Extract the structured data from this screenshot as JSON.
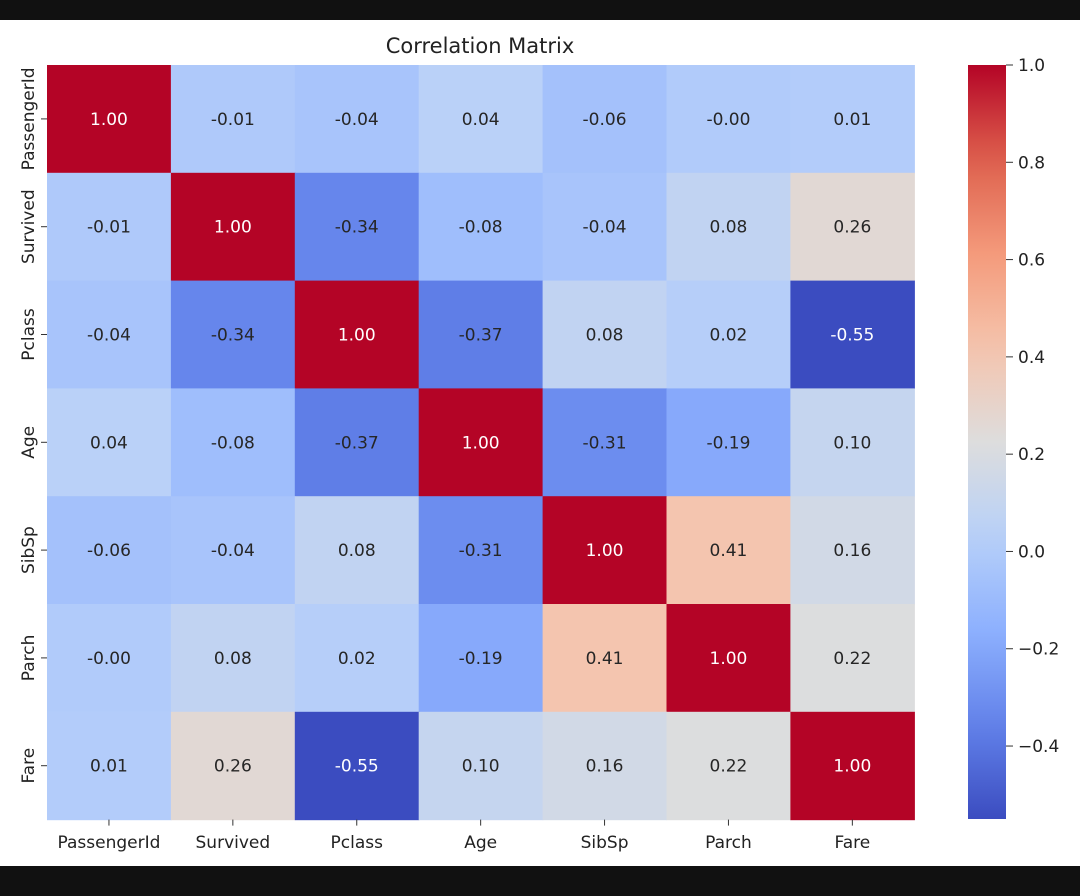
{
  "chart_data": {
    "type": "heatmap",
    "title": "Correlation Matrix",
    "xlabel": "",
    "ylabel": "",
    "row_labels": [
      "PassengerId",
      "Survived",
      "Pclass",
      "Age",
      "SibSp",
      "Parch",
      "Fare"
    ],
    "col_labels": [
      "PassengerId",
      "Survived",
      "Pclass",
      "Age",
      "SibSp",
      "Parch",
      "Fare"
    ],
    "values": [
      [
        1.0,
        -0.01,
        -0.04,
        0.04,
        -0.06,
        -0.0,
        0.01
      ],
      [
        -0.01,
        1.0,
        -0.34,
        -0.08,
        -0.04,
        0.08,
        0.26
      ],
      [
        -0.04,
        -0.34,
        1.0,
        -0.37,
        0.08,
        0.02,
        -0.55
      ],
      [
        0.04,
        -0.08,
        -0.37,
        1.0,
        -0.31,
        -0.19,
        0.1
      ],
      [
        -0.06,
        -0.04,
        0.08,
        -0.31,
        1.0,
        0.41,
        0.16
      ],
      [
        -0.0,
        0.08,
        0.02,
        -0.19,
        0.41,
        1.0,
        0.22
      ],
      [
        0.01,
        0.26,
        -0.55,
        0.1,
        0.16,
        0.22,
        1.0
      ]
    ],
    "value_format": "2 decimals",
    "colormap": "coolwarm",
    "colorbar": {
      "range": [
        -0.55,
        1.0
      ],
      "ticks": [
        1.0,
        0.8,
        0.6,
        0.4,
        0.2,
        0.0,
        -0.2,
        -0.4
      ],
      "tick_labels": [
        "1.0",
        "0.8",
        "0.6",
        "0.4",
        "0.2",
        "0.0",
        "−0.2",
        "−0.4"
      ]
    },
    "grid": false,
    "legend": "colorbar-right"
  }
}
